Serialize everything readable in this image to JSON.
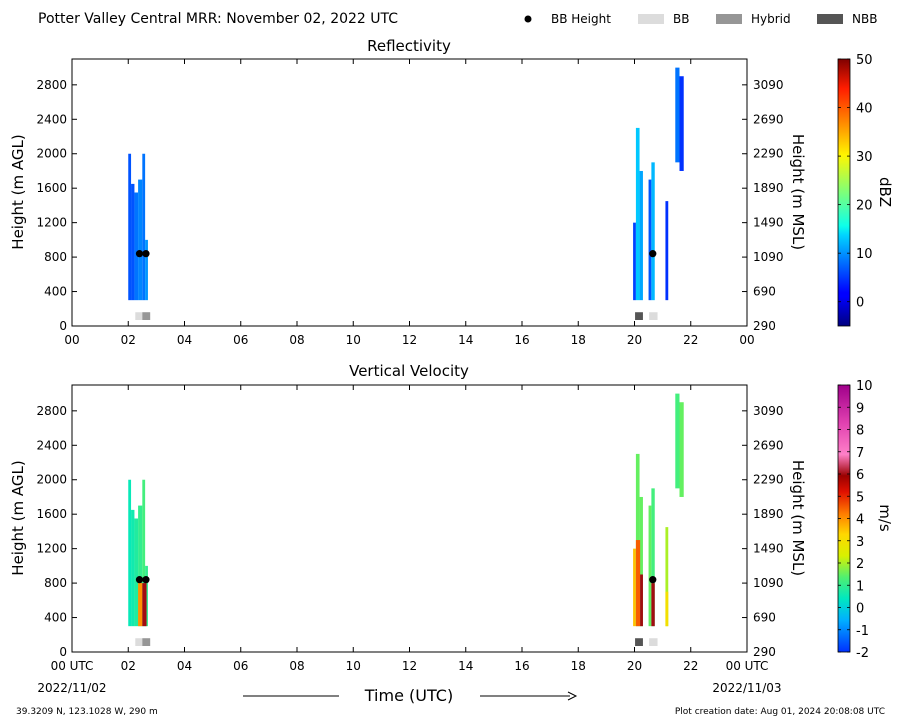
{
  "header": {
    "title": "Potter Valley Central MRR:  November 02, 2022 UTC",
    "legend": [
      {
        "label": "BB Height",
        "kind": "dot",
        "color": "#000000"
      },
      {
        "label": "BB",
        "kind": "box",
        "color": "#dcdcdc"
      },
      {
        "label": "Hybrid",
        "kind": "box",
        "color": "#969696"
      },
      {
        "label": "NBB",
        "kind": "box",
        "color": "#555555"
      }
    ]
  },
  "footer": {
    "location": "39.3209 N, 123.1028 W, 290 m",
    "creation": "Plot creation date: Aug 01, 2024 20:08:08 UTC",
    "start_date": "2022/11/02",
    "end_date": "2022/11/03",
    "xlabel": "Time (UTC)"
  },
  "chart_data": [
    {
      "type": "heatmap",
      "title": "Reflectivity",
      "ylabel": "Height (m AGL)",
      "ylabel_right": "Height (m MSL)",
      "xlim": [
        0,
        24
      ],
      "ylim": [
        0,
        3100
      ],
      "xticks": [
        "00",
        "02",
        "04",
        "06",
        "08",
        "10",
        "12",
        "14",
        "16",
        "18",
        "20",
        "22",
        "00"
      ],
      "yticks": [
        0,
        400,
        800,
        1200,
        1600,
        2000,
        2400,
        2800
      ],
      "yticks_right": [
        290,
        690,
        1090,
        1490,
        1890,
        2290,
        2690,
        3090
      ],
      "colorbar": {
        "label": "dBZ",
        "min": -5,
        "max": 50,
        "ticks": [
          0,
          10,
          20,
          30,
          40,
          50
        ],
        "colormap": "jet"
      },
      "echo_columns": [
        {
          "t": [
            2.0,
            2.1
          ],
          "top": 2000,
          "value": 6
        },
        {
          "t": [
            2.1,
            2.22
          ],
          "top": 1650,
          "value": 6
        },
        {
          "t": [
            2.22,
            2.35
          ],
          "top": 1550,
          "value": 8
        },
        {
          "t": [
            2.35,
            2.5
          ],
          "top": 1700,
          "value": 9
        },
        {
          "t": [
            2.5,
            2.6
          ],
          "top": 2000,
          "value": 8
        },
        {
          "t": [
            2.6,
            2.7
          ],
          "top": 1000,
          "value": 10
        },
        {
          "t": [
            19.95,
            20.05
          ],
          "top": 1200,
          "value": 5
        },
        {
          "t": [
            20.05,
            20.18
          ],
          "top": 2300,
          "value": 13
        },
        {
          "t": [
            20.18,
            20.3
          ],
          "top": 1800,
          "value": 11
        },
        {
          "t": [
            20.5,
            20.6
          ],
          "top": 1700,
          "value": 6
        },
        {
          "t": [
            20.6,
            20.72
          ],
          "top": 1900,
          "value": 12
        },
        {
          "t": [
            21.1,
            21.2
          ],
          "top": 1450,
          "value": 4
        },
        {
          "t": [
            21.45,
            21.6
          ],
          "top": 3000,
          "value": 8,
          "bottom": 1900
        },
        {
          "t": [
            21.6,
            21.75
          ],
          "top": 2900,
          "value": 4,
          "bottom": 1800
        }
      ],
      "bb_height_points": [
        {
          "t": 2.4,
          "h": 840
        },
        {
          "t": 2.63,
          "h": 840
        },
        {
          "t": 20.65,
          "h": 840
        }
      ],
      "bb_type_bars": [
        {
          "t": [
            2.25,
            2.5
          ],
          "type": "BB"
        },
        {
          "t": [
            2.5,
            2.78
          ],
          "type": "Hybrid"
        },
        {
          "t": [
            20.02,
            20.3
          ],
          "type": "NBB"
        },
        {
          "t": [
            20.52,
            20.82
          ],
          "type": "BB"
        }
      ]
    },
    {
      "type": "heatmap",
      "title": "Vertical Velocity",
      "ylabel": "Height (m AGL)",
      "ylabel_right": "Height (m MSL)",
      "xlim": [
        0,
        24
      ],
      "ylim": [
        0,
        3100
      ],
      "xticks": [
        "00 UTC",
        "02",
        "04",
        "06",
        "08",
        "10",
        "12",
        "14",
        "16",
        "18",
        "20",
        "22",
        "00 UTC"
      ],
      "yticks": [
        0,
        400,
        800,
        1200,
        1600,
        2000,
        2400,
        2800
      ],
      "yticks_right": [
        290,
        690,
        1090,
        1490,
        1890,
        2290,
        2690,
        3090
      ],
      "colorbar": {
        "label": "m/s",
        "min": -2,
        "max": 10,
        "ticks": [
          -2,
          -1,
          0,
          1,
          2,
          3,
          4,
          5,
          6,
          7,
          8,
          9,
          10
        ],
        "colormap": "velocity"
      },
      "echo_columns": [
        {
          "t": [
            2.0,
            2.1
          ],
          "top": 2000,
          "value": 0.5
        },
        {
          "t": [
            2.1,
            2.22
          ],
          "top": 1650,
          "value": 0.6
        },
        {
          "t": [
            2.22,
            2.35
          ],
          "top": 1550,
          "value": 0.8
        },
        {
          "t": [
            2.35,
            2.5
          ],
          "top": 1700,
          "value": 1.0
        },
        {
          "t": [
            2.5,
            2.6
          ],
          "top": 2000,
          "value": 1.2
        },
        {
          "t": [
            2.6,
            2.7
          ],
          "top": 1000,
          "value": 1.0
        },
        {
          "t": [
            19.95,
            20.05
          ],
          "top": 1200,
          "value": 3.5
        },
        {
          "t": [
            20.05,
            20.18
          ],
          "top": 2300,
          "value": 1.5
        },
        {
          "t": [
            20.18,
            20.3
          ],
          "top": 1800,
          "value": 1.5
        },
        {
          "t": [
            20.5,
            20.6
          ],
          "top": 1700,
          "value": 1.5
        },
        {
          "t": [
            20.6,
            20.72
          ],
          "top": 1900,
          "value": 1.2
        },
        {
          "t": [
            21.1,
            21.2
          ],
          "top": 1450,
          "value": 2.0
        },
        {
          "t": [
            21.45,
            21.6
          ],
          "top": 3000,
          "value": 1.2,
          "bottom": 1900
        },
        {
          "t": [
            21.6,
            21.75
          ],
          "top": 2900,
          "value": 1.5,
          "bottom": 1800
        }
      ],
      "fall_streaks": [
        {
          "t": [
            2.35,
            2.5
          ],
          "top": 800,
          "value": 4
        },
        {
          "t": [
            2.5,
            2.65
          ],
          "top": 800,
          "value": 6
        },
        {
          "t": [
            20.05,
            20.2
          ],
          "top": 1300,
          "value": 4.5
        },
        {
          "t": [
            20.2,
            20.3
          ],
          "top": 900,
          "value": 6
        },
        {
          "t": [
            20.6,
            20.72
          ],
          "top": 800,
          "value": 6
        },
        {
          "t": [
            21.1,
            21.2
          ],
          "top": 700,
          "value": 3
        }
      ],
      "bb_height_points": [
        {
          "t": 2.4,
          "h": 840
        },
        {
          "t": 2.63,
          "h": 840
        },
        {
          "t": 20.65,
          "h": 840
        }
      ],
      "bb_type_bars": [
        {
          "t": [
            2.25,
            2.5
          ],
          "type": "BB"
        },
        {
          "t": [
            2.5,
            2.78
          ],
          "type": "Hybrid"
        },
        {
          "t": [
            20.02,
            20.3
          ],
          "type": "NBB"
        },
        {
          "t": [
            20.52,
            20.82
          ],
          "type": "BB"
        }
      ]
    }
  ]
}
